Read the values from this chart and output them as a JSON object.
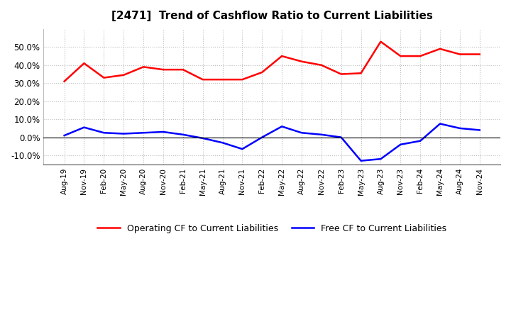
{
  "title": "[2471]  Trend of Cashflow Ratio to Current Liabilities",
  "x_labels": [
    "Aug-19",
    "Nov-19",
    "Feb-20",
    "May-20",
    "Aug-20",
    "Nov-20",
    "Feb-21",
    "May-21",
    "Aug-21",
    "Nov-21",
    "Feb-22",
    "May-22",
    "Aug-22",
    "Nov-22",
    "Feb-23",
    "May-23",
    "Aug-23",
    "Nov-23",
    "Feb-24",
    "May-24",
    "Aug-24",
    "Nov-24"
  ],
  "operating_cf": [
    0.31,
    0.41,
    0.33,
    0.345,
    0.39,
    0.375,
    0.375,
    0.32,
    0.32,
    0.32,
    0.36,
    0.45,
    0.42,
    0.4,
    0.35,
    0.355,
    0.53,
    0.45,
    0.45,
    0.49,
    0.46,
    0.46
  ],
  "free_cf": [
    0.01,
    0.055,
    0.025,
    0.02,
    0.025,
    0.03,
    0.015,
    -0.005,
    -0.03,
    -0.065,
    0.0,
    0.06,
    0.025,
    0.015,
    0.0,
    -0.13,
    -0.12,
    -0.04,
    -0.02,
    0.075,
    0.05,
    0.04
  ],
  "operating_color": "#FF0000",
  "free_color": "#0000FF",
  "ylim": [
    -0.15,
    0.6
  ],
  "yticks": [
    -0.1,
    0.0,
    0.1,
    0.2,
    0.3,
    0.4,
    0.5
  ],
  "background_color": "#FFFFFF",
  "grid_color": "#BBBBBB",
  "legend_labels": [
    "Operating CF to Current Liabilities",
    "Free CF to Current Liabilities"
  ]
}
